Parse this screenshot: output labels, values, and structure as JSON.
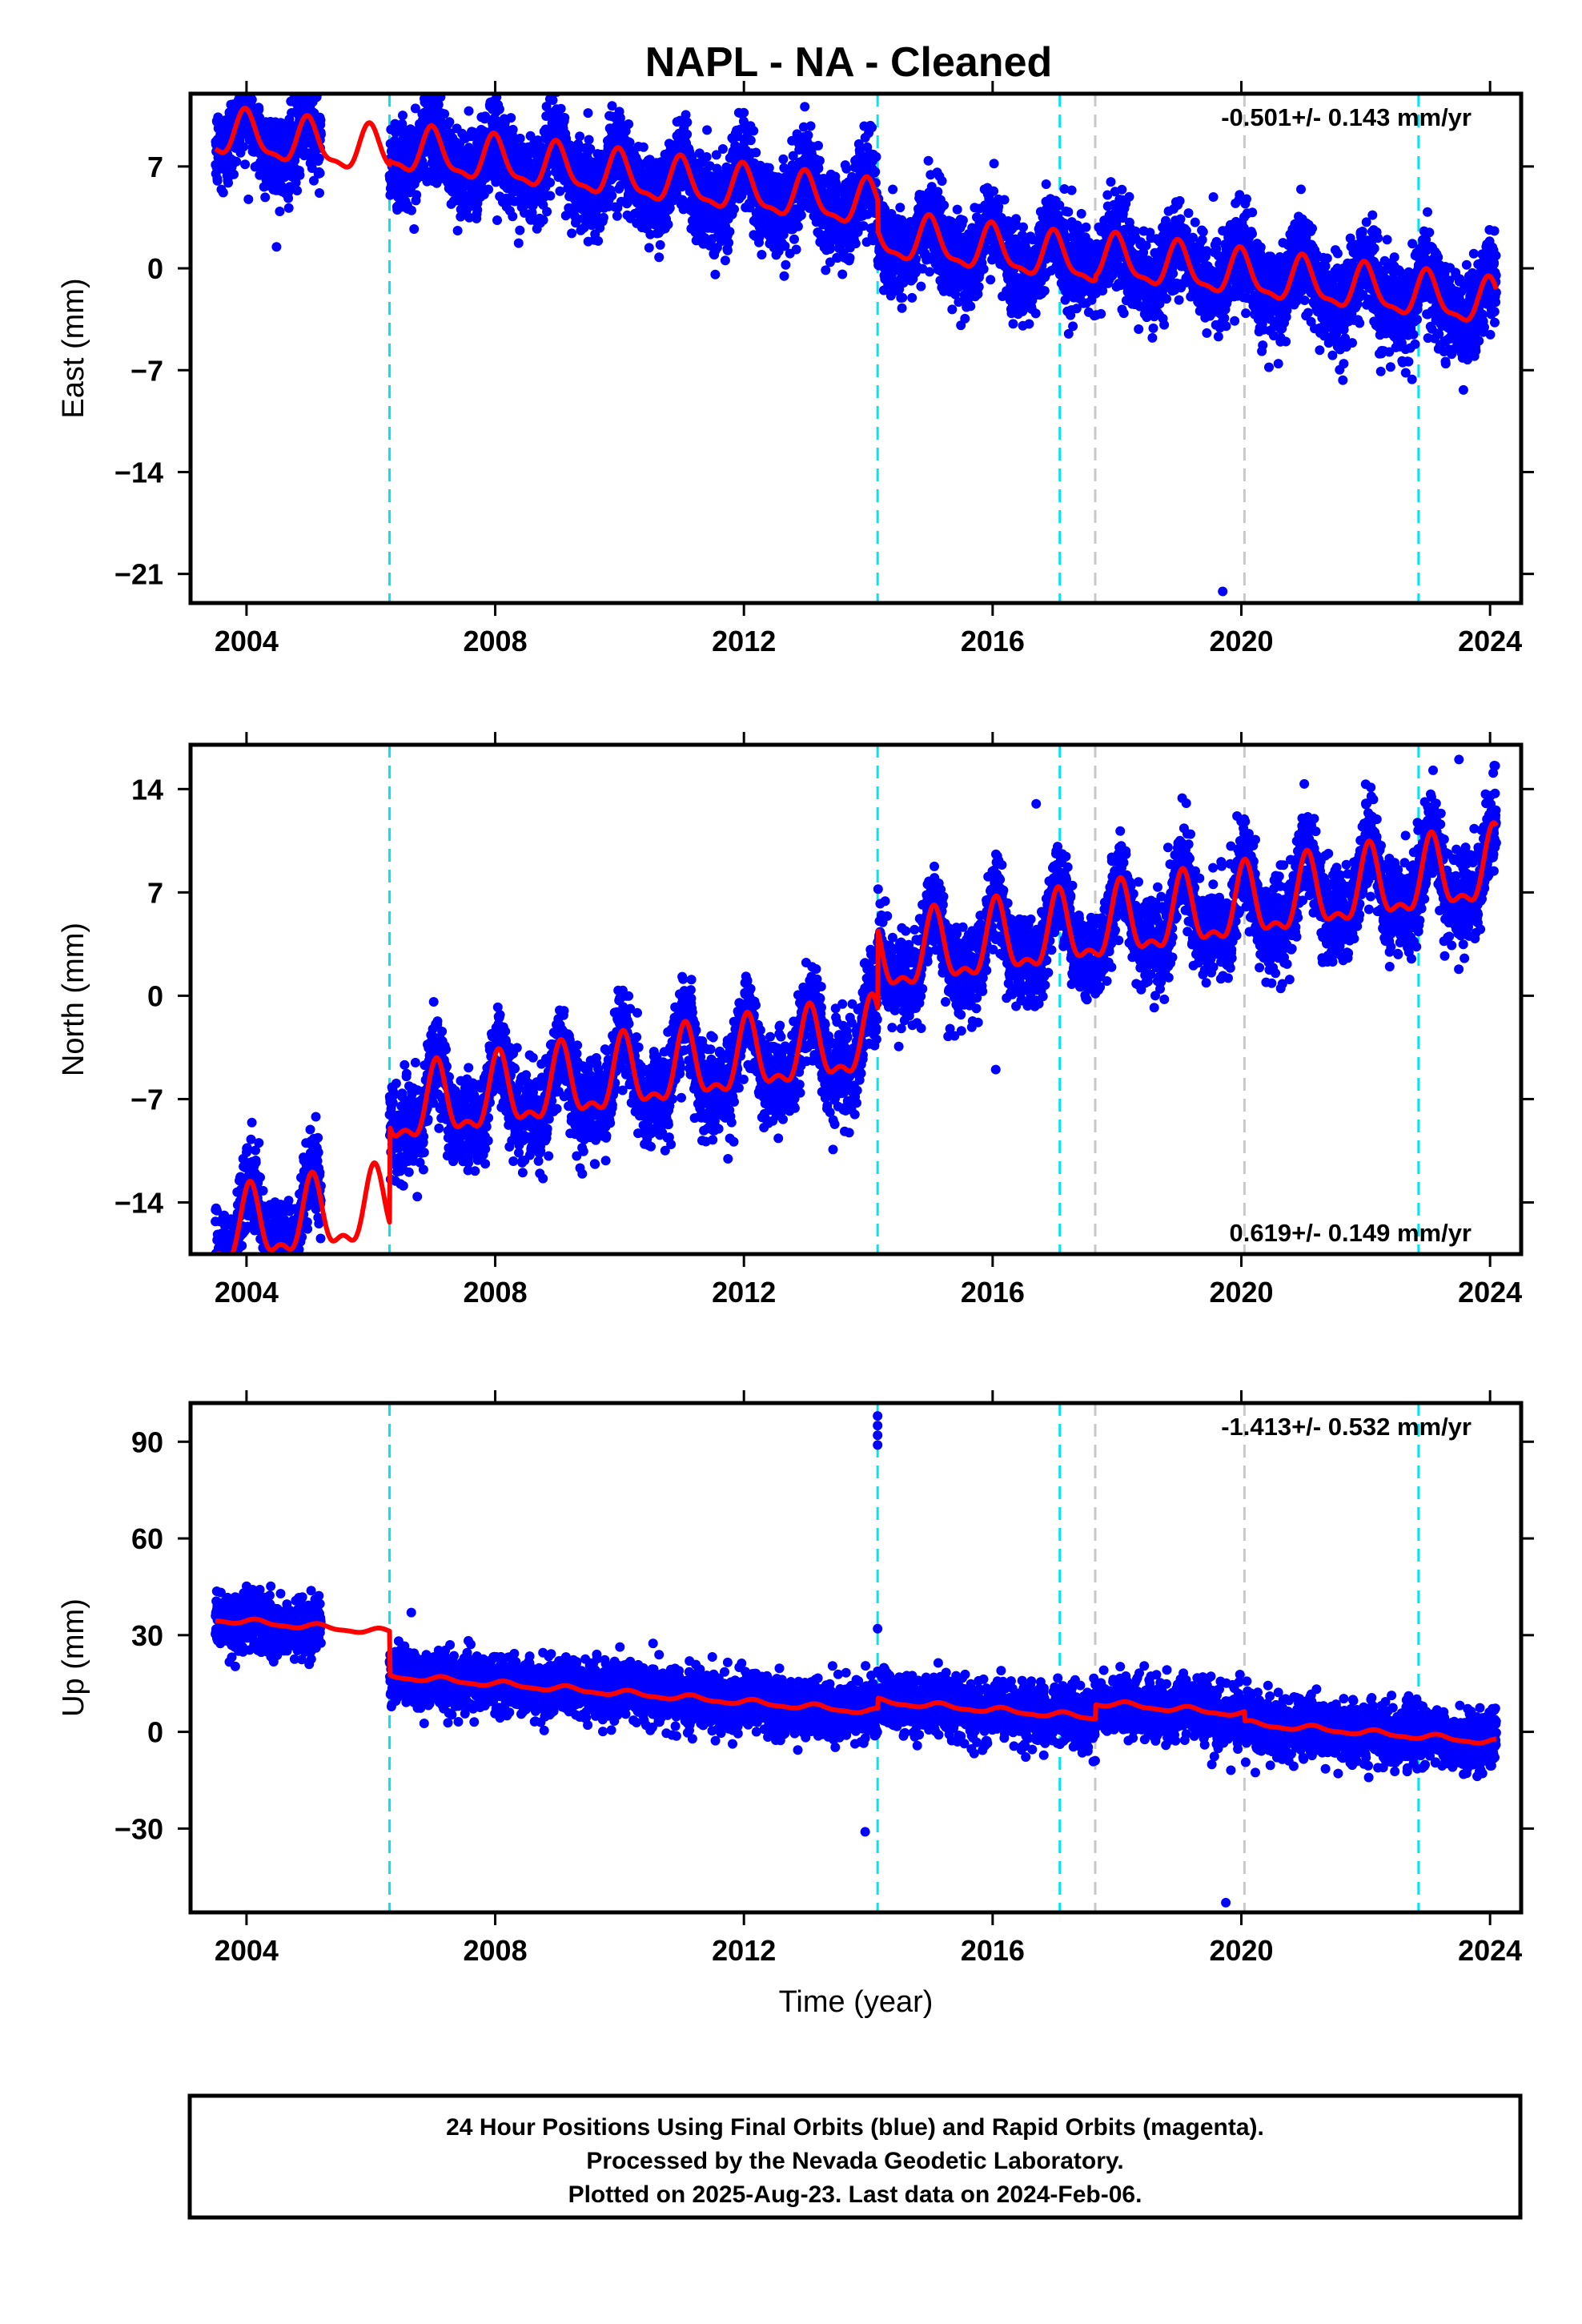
{
  "title": "NAPL  - NA - Cleaned",
  "footer": {
    "lines": [
      "24 Hour Positions Using Final Orbits (blue) and Rapid Orbits (magenta).",
      "Processed by the Nevada Geodetic Laboratory.",
      "Plotted on 2025-Aug-23. Last data on 2024-Feb-06."
    ]
  },
  "colors": {
    "data_points": "#0000ff",
    "model_line": "#ff0000",
    "equipment_change": "#00e5ee",
    "earthquake": "#c8c8c8",
    "frame": "#000000"
  },
  "chart_data": [
    {
      "type": "scatter",
      "component": "East",
      "ylabel": "East (mm)",
      "xlabel": "",
      "xlim": [
        2003.1,
        2024.5
      ],
      "ylim": [
        -23,
        12
      ],
      "xticks": [
        2004,
        2008,
        2012,
        2016,
        2020,
        2024
      ],
      "yticks": [
        7,
        0,
        -7,
        -14,
        -21
      ],
      "ytick_labels": [
        "7",
        "0",
        "−7",
        "−14",
        "−21"
      ],
      "rate_text": "-0.501+/- 0.143 mm/yr",
      "rate_position": "top-right",
      "cyan_lines": [
        2006.3,
        2014.15,
        2017.08,
        2022.85
      ],
      "gray_lines": [
        2017.65,
        2020.05
      ],
      "data_gap": [
        2005.2,
        2006.3
      ],
      "model": {
        "segments": [
          {
            "start": 2003.5,
            "end": 2006.3,
            "offset": 4.0
          },
          {
            "start": 2006.3,
            "end": 2014.15,
            "offset": 4.3
          },
          {
            "start": 2014.15,
            "end": 2024.1,
            "offset": 2.2
          }
        ],
        "rate_mm_per_yr": -0.501,
        "ref_year": 2014,
        "annual_amplitude": 1.5,
        "annual_phase": 1.6,
        "semiannual_amplitude": 0.5,
        "semiannual_phase": 2.0,
        "extra_steps": [
          {
            "year": 2017.65,
            "value": 0.3
          }
        ]
      },
      "scatter": {
        "sigma": 1.5,
        "outliers": [
          [
            2019.7,
            -22.2
          ],
          [
            2019.55,
            4.9
          ],
          [
            2019.9,
            3.0
          ]
        ]
      }
    },
    {
      "type": "scatter",
      "component": "North",
      "ylabel": "North (mm)",
      "xlabel": "",
      "xlim": [
        2003.1,
        2024.5
      ],
      "ylim": [
        -17.5,
        17
      ],
      "xticks": [
        2004,
        2008,
        2012,
        2016,
        2020,
        2024
      ],
      "yticks": [
        14,
        7,
        0,
        -7,
        -14
      ],
      "ytick_labels": [
        "14",
        "7",
        "0",
        "−7",
        "−14"
      ],
      "rate_text": "0.619+/- 0.149 mm/yr",
      "rate_position": "bottom-right",
      "cyan_lines": [
        2006.3,
        2014.15,
        2017.08,
        2022.85
      ],
      "gray_lines": [
        2017.65,
        2020.05
      ],
      "data_gap": [
        2005.2,
        2006.3
      ],
      "model": {
        "segments": [
          {
            "start": 2003.5,
            "end": 2006.3,
            "offset": -9.7
          },
          {
            "start": 2006.3,
            "end": 2014.15,
            "offset": -3.2
          },
          {
            "start": 2014.15,
            "end": 2024.1,
            "offset": 2.2
          }
        ],
        "rate_mm_per_yr": 0.619,
        "ref_year": 2014,
        "annual_amplitude": 2.3,
        "annual_phase": 1.2,
        "semiannual_amplitude": 1.0,
        "semiannual_phase": 0.9,
        "extra_steps": []
      },
      "scatter": {
        "sigma": 1.5,
        "outliers": [
          [
            2016.7,
            13.0
          ],
          [
            2023.5,
            16.0
          ],
          [
            2016.05,
            -5.0
          ]
        ]
      }
    },
    {
      "type": "scatter",
      "component": "Up",
      "ylabel": "Up (mm)",
      "xlabel": "Time (year)",
      "xlim": [
        2003.1,
        2024.5
      ],
      "ylim": [
        -56,
        102
      ],
      "xticks": [
        2004,
        2008,
        2012,
        2016,
        2020,
        2024
      ],
      "yticks": [
        90,
        60,
        30,
        0,
        -30
      ],
      "ytick_labels": [
        "90",
        "60",
        "30",
        "0",
        "−30"
      ],
      "rate_text": "-1.413+/- 0.532 mm/yr",
      "rate_position": "top-right",
      "cyan_lines": [
        2006.3,
        2014.15,
        2017.08,
        2022.85
      ],
      "gray_lines": [
        2017.65,
        2020.05
      ],
      "data_gap": [
        2005.2,
        2006.3
      ],
      "model": {
        "segments": [
          {
            "start": 2003.5,
            "end": 2006.3,
            "offset": 20.0
          },
          {
            "start": 2006.3,
            "end": 2014.15,
            "offset": 6.4
          },
          {
            "start": 2014.15,
            "end": 2024.1,
            "offset": 9.6
          }
        ],
        "rate_mm_per_yr": -1.413,
        "ref_year": 2014,
        "annual_amplitude": 0.8,
        "annual_phase": 0.5,
        "semiannual_amplitude": 0.3,
        "semiannual_phase": 0.0,
        "extra_steps": [
          {
            "year": 2017.65,
            "value": 4.5
          },
          {
            "year": 2020.05,
            "value": -3.0
          }
        ]
      },
      "scatter": {
        "sigma": 4.3,
        "outliers": [
          [
            2014.15,
            98
          ],
          [
            2014.15,
            95
          ],
          [
            2014.15,
            92
          ],
          [
            2014.15,
            89
          ],
          [
            2006.65,
            37
          ],
          [
            2013.95,
            -31
          ],
          [
            2019.75,
            -53
          ],
          [
            2014.15,
            32
          ]
        ]
      }
    }
  ]
}
